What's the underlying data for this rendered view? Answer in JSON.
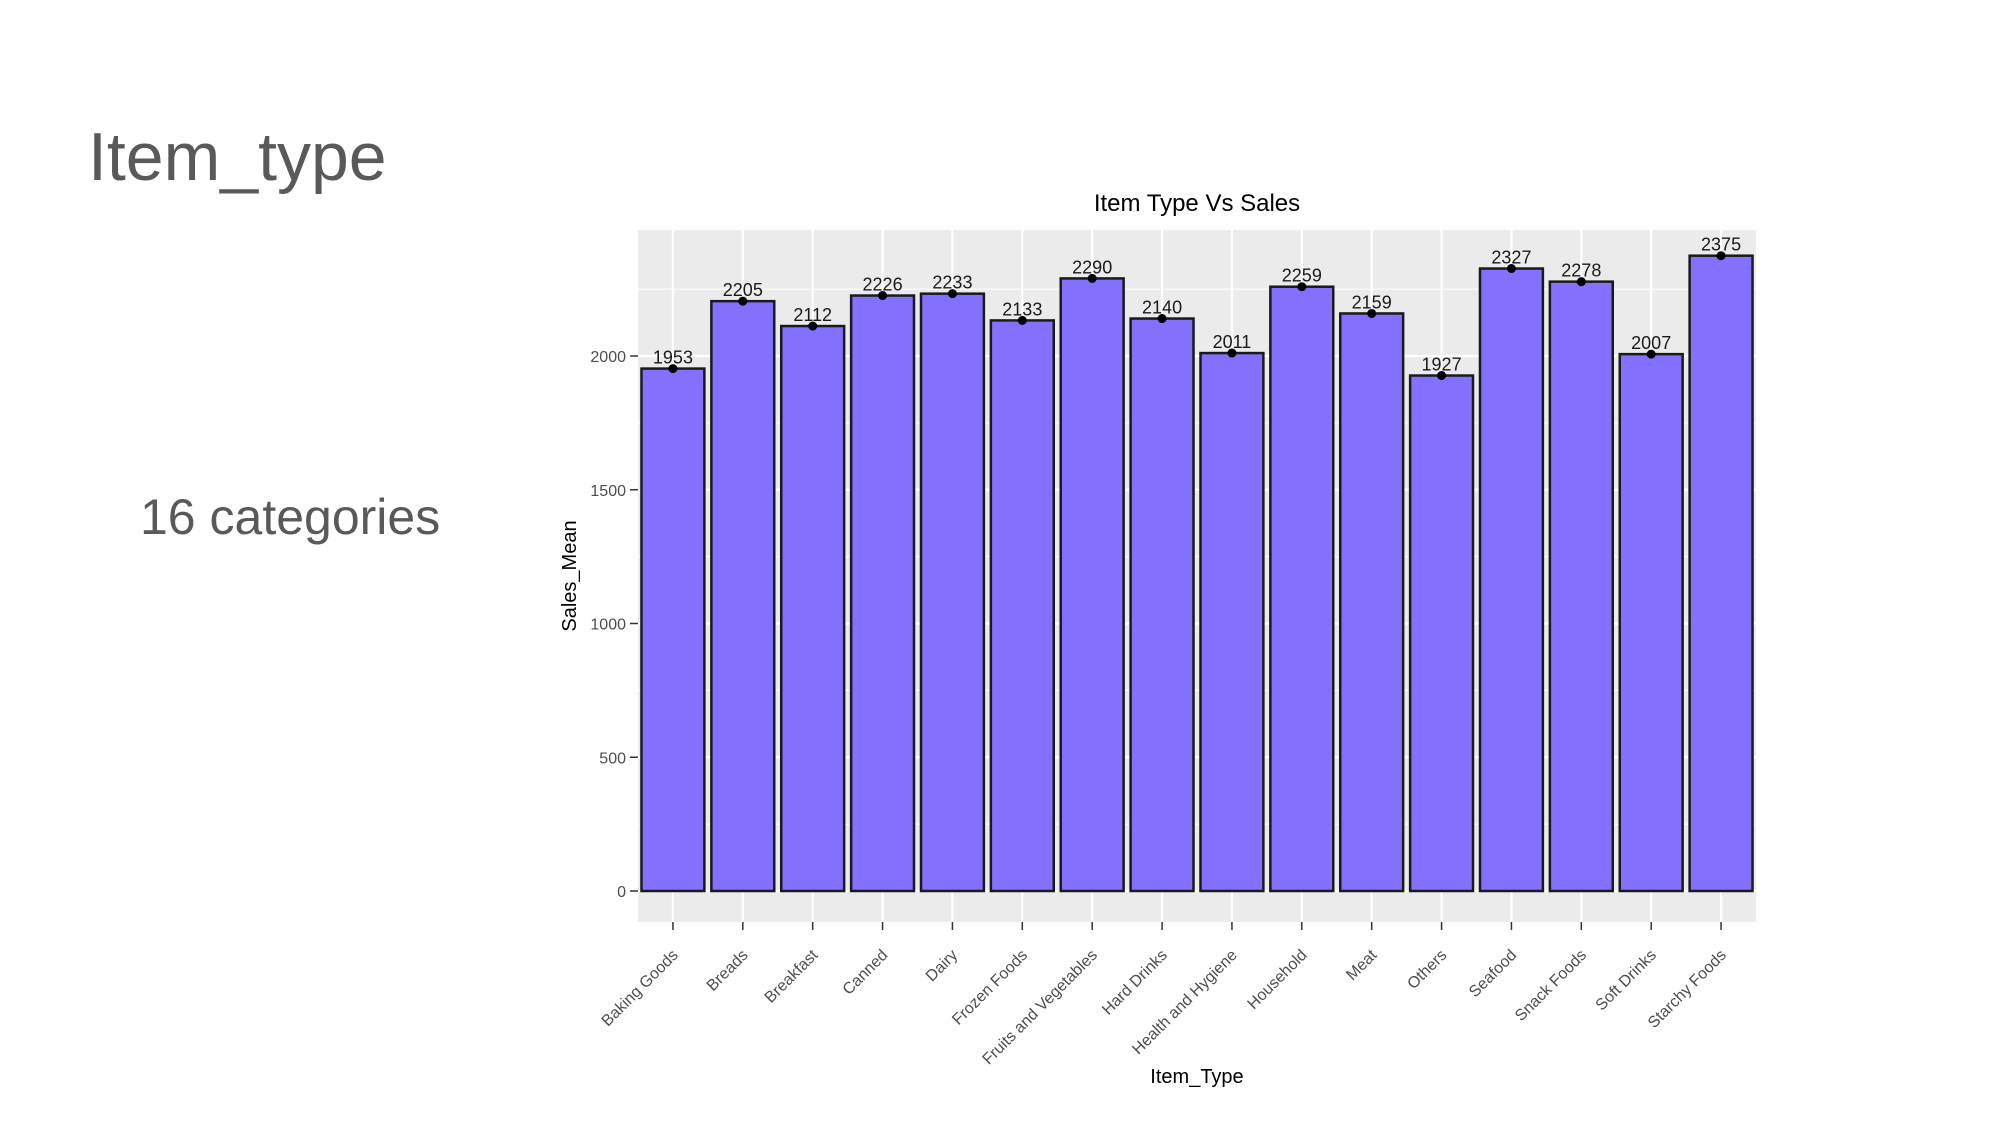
{
  "slide": {
    "title": "Item_type",
    "subtitle": "16 categories"
  },
  "colors": {
    "bar_fill": "#8470ff",
    "bar_stroke": "#1a1a1a",
    "panel_bg": "#ebebeb",
    "grid": "#ffffff",
    "slide_text": "#595959"
  },
  "chart_data": {
    "type": "bar",
    "title": "Item Type Vs Sales",
    "xlabel": "Item_Type",
    "ylabel": "Sales_Mean",
    "ylim": [
      0,
      2480
    ],
    "yticks": [
      0,
      500,
      1000,
      1500,
      2000
    ],
    "ytick_labels": [
      "0",
      "500",
      "1000",
      "1500",
      "2000"
    ],
    "grid": true,
    "categories": [
      "Baking Goods",
      "Breads",
      "Breakfast",
      "Canned",
      "Dairy",
      "Frozen Foods",
      "Fruits and Vegetables",
      "Hard Drinks",
      "Health and Hygiene",
      "Household",
      "Meat",
      "Others",
      "Seafood",
      "Snack Foods",
      "Soft Drinks",
      "Starchy Foods"
    ],
    "values": [
      1953,
      2205,
      2112,
      2226,
      2233,
      2133,
      2290,
      2140,
      2011,
      2259,
      2159,
      1927,
      2327,
      2278,
      2007,
      2375
    ],
    "data_labels": [
      "1953",
      "2205",
      "2112",
      "2226",
      "2233",
      "2133",
      "2290",
      "2140",
      "2011",
      "2259",
      "2159",
      "1927",
      "2327",
      "2278",
      "2007",
      "2375"
    ]
  }
}
